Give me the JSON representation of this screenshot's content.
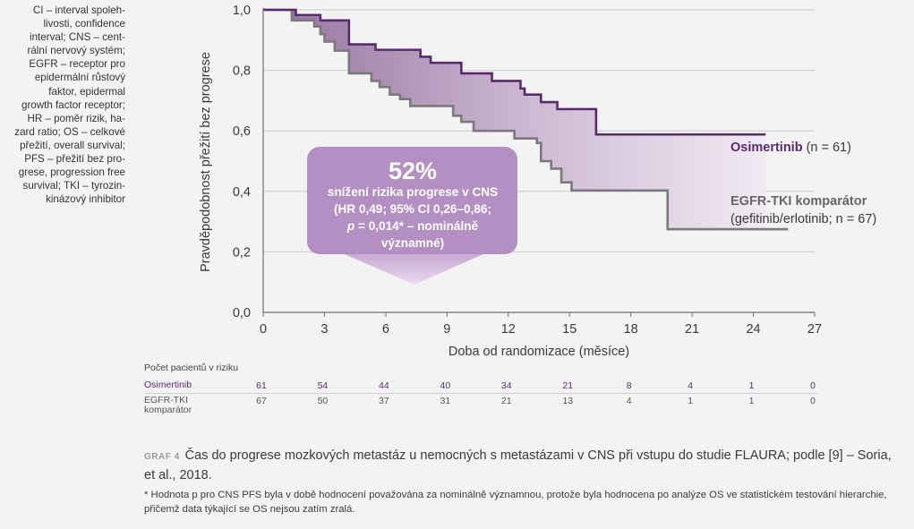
{
  "abbreviations": "CI – interval spoleh-\nlivosti, confidence\ninterval; CNS – cent-\nrální nervový systém;\nEGFR – receptor pro\nepidermální růstový\nfaktor, epidermal\ngrowth factor receptor;\nHR – poměr rizik, ha-\nzard ratio; OS – celkové\npřežití, overall survival;\nPFS – přežití bez pro-\ngrese, progression free\nsurvival; TKI – tyrozin-\nkinázový inhibitor",
  "chart_data": {
    "type": "line",
    "xlabel": "Doba od randomizace (měsíce)",
    "ylabel": "Pravděpodobnost přežití bez progrese",
    "xlim": [
      0,
      27
    ],
    "ylim": [
      0,
      1
    ],
    "x_ticks": [
      0,
      3,
      6,
      9,
      12,
      15,
      18,
      21,
      24,
      27
    ],
    "y_ticks": [
      "0,0",
      "0,2",
      "0,4",
      "0,6",
      "0,8",
      "1,0"
    ],
    "y_tick_values": [
      0,
      0.2,
      0.4,
      0.6,
      0.8,
      1.0
    ],
    "grid": "horizontal",
    "series": [
      {
        "name": "Osimertinib",
        "label_suffix": "(n = 61)",
        "color": "#5b2a6e",
        "points": [
          [
            0,
            1.0
          ],
          [
            1.6,
            1.0
          ],
          [
            1.6,
            0.983
          ],
          [
            2.8,
            0.983
          ],
          [
            2.8,
            0.965
          ],
          [
            4.2,
            0.965
          ],
          [
            4.2,
            0.886
          ],
          [
            5.5,
            0.886
          ],
          [
            5.5,
            0.868
          ],
          [
            7.7,
            0.868
          ],
          [
            7.7,
            0.845
          ],
          [
            8.2,
            0.845
          ],
          [
            8.2,
            0.825
          ],
          [
            9.7,
            0.825
          ],
          [
            9.7,
            0.79
          ],
          [
            11.2,
            0.79
          ],
          [
            11.2,
            0.765
          ],
          [
            12.6,
            0.765
          ],
          [
            12.6,
            0.74
          ],
          [
            12.8,
            0.74
          ],
          [
            12.8,
            0.72
          ],
          [
            13.6,
            0.72
          ],
          [
            13.6,
            0.695
          ],
          [
            14.4,
            0.695
          ],
          [
            14.4,
            0.672
          ],
          [
            16.3,
            0.672
          ],
          [
            16.3,
            0.588
          ],
          [
            24.6,
            0.588
          ]
        ]
      },
      {
        "name": "EGFR-TKI komparátor",
        "label_suffix": "(gefitinib/erlotinib; n = 67)",
        "color": "#7a7a7a",
        "points": [
          [
            0,
            1.0
          ],
          [
            1.4,
            1.0
          ],
          [
            1.4,
            0.965
          ],
          [
            2.5,
            0.965
          ],
          [
            2.5,
            0.945
          ],
          [
            2.8,
            0.945
          ],
          [
            2.8,
            0.92
          ],
          [
            3.0,
            0.92
          ],
          [
            3.0,
            0.895
          ],
          [
            3.5,
            0.895
          ],
          [
            3.5,
            0.865
          ],
          [
            4.2,
            0.865
          ],
          [
            4.2,
            0.79
          ],
          [
            5.3,
            0.79
          ],
          [
            5.3,
            0.765
          ],
          [
            5.7,
            0.765
          ],
          [
            5.7,
            0.745
          ],
          [
            6.2,
            0.745
          ],
          [
            6.2,
            0.72
          ],
          [
            6.7,
            0.72
          ],
          [
            6.7,
            0.705
          ],
          [
            7.2,
            0.705
          ],
          [
            7.2,
            0.682
          ],
          [
            9.3,
            0.682
          ],
          [
            9.3,
            0.65
          ],
          [
            9.7,
            0.65
          ],
          [
            9.7,
            0.63
          ],
          [
            10.3,
            0.63
          ],
          [
            10.3,
            0.6
          ],
          [
            12.3,
            0.6
          ],
          [
            12.3,
            0.575
          ],
          [
            13.4,
            0.575
          ],
          [
            13.4,
            0.56
          ],
          [
            13.6,
            0.56
          ],
          [
            13.6,
            0.5
          ],
          [
            14.1,
            0.5
          ],
          [
            14.1,
            0.475
          ],
          [
            14.6,
            0.475
          ],
          [
            14.6,
            0.43
          ],
          [
            15.1,
            0.43
          ],
          [
            15.1,
            0.403
          ],
          [
            19.8,
            0.403
          ],
          [
            19.8,
            0.275
          ],
          [
            25.7,
            0.275
          ]
        ]
      }
    ],
    "annotation": {
      "big": "52%",
      "text": "snížení rizika progrese v CNS\n(HR 0,49; 95% CI 0,26–0,86;",
      "p_symbol": "p",
      "p_text": " = 0,014* – nominálně",
      "last": "významné)"
    },
    "risk_table": {
      "title": "Počet pacientů v riziku",
      "rows": [
        {
          "label": "Osimertinib",
          "values": [
            61,
            54,
            44,
            40,
            34,
            21,
            8,
            4,
            1,
            0
          ]
        },
        {
          "label": "EGFR-TKI\nkomparátor",
          "values": [
            67,
            50,
            37,
            31,
            21,
            13,
            4,
            1,
            1,
            0
          ]
        }
      ]
    }
  },
  "caption": {
    "label": "GRAF 4",
    "text": "Čas do progrese mozkových metastáz u nemocných s metastázami v CNS při vstupu do studie FLAURA; podle [9] – Soria, et al., 2018."
  },
  "footnote": "* Hodnota p pro CNS PFS byla v době hodnocení považována za nominálně významnou, protože byla hodnocena po analýze OS ve statistickém testování hierarchie, přičemž data týkající se OS nejsou zatím zralá.",
  "colors": {
    "accent": "#5b2a6e",
    "bubble": "#b48fc4",
    "comparator": "#7a7a7a"
  }
}
